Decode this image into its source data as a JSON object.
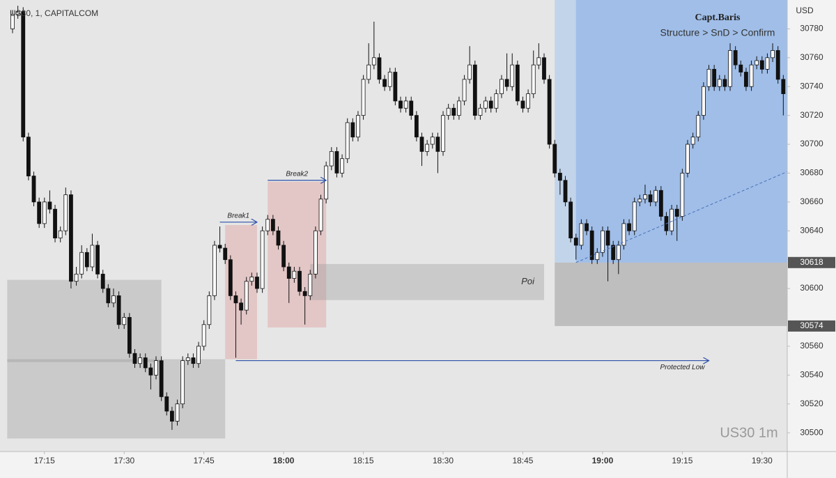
{
  "chart_data": {
    "type": "candlestick",
    "symbol": "US30, 1, CAPITALCOM",
    "currency": "USD",
    "author": "Capt.Baris",
    "subtitle": "Structure > SnD > Confirm",
    "watermark": "US30 1m",
    "up_color": "#ffffff",
    "down_color": "#111111",
    "x": [
      "17:09",
      "17:10",
      "17:11",
      "17:12",
      "17:13",
      "17:14",
      "17:15",
      "17:16",
      "17:17",
      "17:18",
      "17:19",
      "17:20",
      "17:21",
      "17:22",
      "17:23",
      "17:24",
      "17:25",
      "17:26",
      "17:27",
      "17:28",
      "17:29",
      "17:30",
      "17:31",
      "17:32",
      "17:33",
      "17:34",
      "17:35",
      "17:36",
      "17:37",
      "17:38",
      "17:39",
      "17:40",
      "17:41",
      "17:42",
      "17:43",
      "17:44",
      "17:45",
      "17:46",
      "17:47",
      "17:48",
      "17:49",
      "17:50",
      "17:51",
      "17:52",
      "17:53",
      "17:54",
      "17:55",
      "17:56",
      "17:57",
      "17:58",
      "17:59",
      "18:00",
      "18:01",
      "18:02",
      "18:03",
      "18:04",
      "18:05",
      "18:06",
      "18:07",
      "18:08",
      "18:09",
      "18:10",
      "18:11",
      "18:12",
      "18:13",
      "18:14",
      "18:15",
      "18:16",
      "18:17",
      "18:18",
      "18:19",
      "18:20",
      "18:21",
      "18:22",
      "18:23",
      "18:24",
      "18:25",
      "18:26",
      "18:27",
      "18:28",
      "18:29",
      "18:30",
      "18:31",
      "18:32",
      "18:33",
      "18:34",
      "18:35",
      "18:36",
      "18:37",
      "18:38",
      "18:39",
      "18:40",
      "18:41",
      "18:42",
      "18:43",
      "18:44",
      "18:45",
      "18:46",
      "18:47",
      "18:48",
      "18:49",
      "18:50",
      "18:51",
      "18:52",
      "18:53",
      "18:54",
      "18:55",
      "18:56",
      "18:57",
      "18:58",
      "18:59",
      "19:00",
      "19:01",
      "19:02",
      "19:03",
      "19:04",
      "19:05",
      "19:06",
      "19:07",
      "19:08",
      "19:09",
      "19:10",
      "19:11",
      "19:12",
      "19:13",
      "19:14",
      "19:15",
      "19:16",
      "19:17",
      "19:18",
      "19:19",
      "19:20",
      "19:21",
      "19:22",
      "19:23",
      "19:24",
      "19:25",
      "19:26",
      "19:27",
      "19:28",
      "19:29",
      "19:30",
      "19:31",
      "19:32",
      "19:33",
      "19:34"
    ],
    "open": [
      30780,
      30790,
      30792,
      30705,
      30678,
      30660,
      30645,
      30660,
      30655,
      30635,
      30640,
      30665,
      30605,
      30610,
      30625,
      30615,
      30630,
      30610,
      30600,
      30590,
      30595,
      30575,
      30580,
      30555,
      30548,
      30552,
      30545,
      30540,
      30550,
      30525,
      30515,
      30508,
      30520,
      30550,
      30552,
      30548,
      30560,
      30575,
      30595,
      30630,
      30628,
      30620,
      30595,
      30590,
      30585,
      30605,
      30608,
      30600,
      30640,
      30648,
      30640,
      30630,
      30615,
      30607,
      30612,
      30598,
      30595,
      30610,
      30640,
      30662,
      30685,
      30695,
      30680,
      30690,
      30715,
      30705,
      30720,
      30745,
      30755,
      30760,
      30745,
      30740,
      30750,
      30730,
      30725,
      30730,
      30720,
      30705,
      30695,
      30700,
      30705,
      30695,
      30720,
      30725,
      30720,
      30730,
      30745,
      30755,
      30720,
      30725,
      30730,
      30725,
      30735,
      30745,
      30740,
      30755,
      30730,
      30725,
      30735,
      30755,
      30760,
      30745,
      30700,
      30680,
      30675,
      30660,
      30635,
      30630,
      30645,
      30640,
      30620,
      30625,
      30640,
      30630,
      30620,
      30630,
      30645,
      30640,
      30660,
      30662,
      30665,
      30660,
      30668,
      30650,
      30640,
      30655,
      30650,
      30680,
      30700,
      30705,
      30720,
      30740,
      30752,
      30740,
      30745,
      30740,
      30765,
      30755,
      30750,
      30740,
      30755,
      30758,
      30752,
      30760,
      30765,
      30745
    ],
    "high": [
      30793,
      30796,
      30795,
      30708,
      30681,
      30663,
      30663,
      30668,
      30658,
      30643,
      30670,
      30668,
      30615,
      30630,
      30628,
      30638,
      30633,
      30613,
      30603,
      30600,
      30598,
      30583,
      30583,
      30558,
      30555,
      30555,
      30548,
      30553,
      30553,
      30528,
      30518,
      30523,
      30553,
      30555,
      30555,
      30563,
      30578,
      30598,
      30633,
      30643,
      30631,
      30623,
      30598,
      30593,
      30608,
      30611,
      30611,
      30643,
      30651,
      30651,
      30643,
      30633,
      30618,
      30615,
      30615,
      30601,
      30613,
      30643,
      30665,
      30688,
      30698,
      30698,
      30693,
      30718,
      30718,
      30723,
      30748,
      30770,
      30785,
      30763,
      30748,
      30753,
      30753,
      30733,
      30733,
      30733,
      30723,
      30708,
      30703,
      30708,
      30708,
      30723,
      30728,
      30728,
      30733,
      30748,
      30768,
      30758,
      30728,
      30733,
      30733,
      30738,
      30748,
      30763,
      30763,
      30758,
      30733,
      30738,
      30765,
      30770,
      30763,
      30748,
      30703,
      30683,
      30678,
      30663,
      30638,
      30648,
      30648,
      30643,
      30628,
      30643,
      30643,
      30633,
      30633,
      30648,
      30648,
      30663,
      30665,
      30672,
      30668,
      30671,
      30671,
      30653,
      30658,
      30658,
      30683,
      30703,
      30708,
      30723,
      30743,
      30755,
      30755,
      30748,
      30748,
      30770,
      30768,
      30758,
      30753,
      30758,
      30761,
      30761,
      30763,
      30770,
      30768,
      30748
    ],
    "low": [
      30777,
      30787,
      30702,
      30675,
      30657,
      30642,
      30642,
      30652,
      30632,
      30632,
      30637,
      30600,
      30602,
      30607,
      30612,
      30612,
      30607,
      30597,
      30587,
      30587,
      30572,
      30572,
      30552,
      30545,
      30545,
      30542,
      30530,
      30537,
      30522,
      30512,
      30502,
      30505,
      30517,
      30547,
      30545,
      30545,
      30557,
      30572,
      30592,
      30625,
      30617,
      30592,
      30552,
      30575,
      30582,
      30602,
      30597,
      30597,
      30637,
      30637,
      30627,
      30612,
      30590,
      30604,
      30595,
      30575,
      30592,
      30607,
      30637,
      30659,
      30682,
      30677,
      30677,
      30687,
      30702,
      30702,
      30717,
      30742,
      30752,
      30742,
      30737,
      30737,
      30727,
      30722,
      30722,
      30717,
      30702,
      30685,
      30692,
      30697,
      30680,
      30692,
      30717,
      30717,
      30717,
      30727,
      30742,
      30717,
      30717,
      30722,
      30722,
      30722,
      30732,
      30737,
      30737,
      30727,
      30722,
      30722,
      30732,
      30752,
      30742,
      30697,
      30677,
      30665,
      30657,
      30632,
      30620,
      30627,
      30637,
      30617,
      30617,
      30622,
      30605,
      30617,
      30610,
      30627,
      30637,
      30637,
      30657,
      30659,
      30657,
      30657,
      30647,
      30637,
      30637,
      30633,
      30647,
      30677,
      30697,
      30702,
      30717,
      30737,
      30737,
      30737,
      30737,
      30737,
      30752,
      30747,
      30737,
      30737,
      30752,
      30749,
      30749,
      30757,
      30742,
      30720
    ],
    "close": [
      30790,
      30792,
      30705,
      30678,
      30660,
      30645,
      30660,
      30655,
      30635,
      30640,
      30665,
      30605,
      30610,
      30625,
      30615,
      30630,
      30610,
      30600,
      30590,
      30595,
      30575,
      30580,
      30555,
      30548,
      30552,
      30545,
      30540,
      30550,
      30525,
      30515,
      30508,
      30520,
      30550,
      30552,
      30548,
      30560,
      30575,
      30595,
      30630,
      30628,
      30620,
      30595,
      30590,
      30585,
      30605,
      30608,
      30600,
      30640,
      30648,
      30640,
      30630,
      30615,
      30607,
      30612,
      30598,
      30595,
      30610,
      30640,
      30662,
      30685,
      30695,
      30680,
      30690,
      30715,
      30705,
      30720,
      30745,
      30755,
      30760,
      30745,
      30740,
      30750,
      30730,
      30725,
      30730,
      30720,
      30705,
      30695,
      30700,
      30705,
      30695,
      30720,
      30725,
      30720,
      30730,
      30745,
      30755,
      30720,
      30725,
      30730,
      30725,
      30735,
      30745,
      30740,
      30755,
      30730,
      30725,
      30735,
      30755,
      30760,
      30745,
      30700,
      30680,
      30675,
      30660,
      30635,
      30630,
      30645,
      30640,
      30620,
      30625,
      30640,
      30630,
      30620,
      30630,
      30645,
      30640,
      30660,
      30662,
      30665,
      30660,
      30668,
      30650,
      30640,
      30655,
      30650,
      30680,
      30700,
      30705,
      30720,
      30740,
      30752,
      30740,
      30745,
      30740,
      30765,
      30755,
      30750,
      30740,
      30755,
      30758,
      30752,
      30760,
      30765,
      30745,
      30735
    ],
    "ylim": [
      30487,
      30800
    ],
    "yticks": [
      30500,
      30520,
      30540,
      30560,
      30600,
      30640,
      30660,
      30680,
      30700,
      30720,
      30740,
      30760,
      30780
    ],
    "xticks": [
      "17:15",
      "17:30",
      "17:45",
      "18:00",
      "18:15",
      "18:30",
      "18:45",
      "19:00",
      "19:15",
      "19:30"
    ],
    "grid": false,
    "price_labels": [
      30618,
      30574
    ],
    "zones": [
      {
        "from": "17:08",
        "to": "17:37",
        "ylim": [
          30549,
          30606
        ],
        "color": "rgba(150,150,150,0.35)"
      },
      {
        "from": "17:08",
        "to": "17:49",
        "ylim": [
          30496,
          30551
        ],
        "color": "rgba(150,150,150,0.35)"
      },
      {
        "from": "17:49",
        "to": "17:55",
        "ylim": [
          30551,
          30644
        ],
        "color": "rgba(225,160,160,0.45)"
      },
      {
        "from": "17:57",
        "to": "18:08",
        "ylim": [
          30573,
          30674
        ],
        "color": "rgba(225,160,160,0.45)"
      },
      {
        "from": "18:05",
        "to": "18:49",
        "ylim": [
          30592,
          30617
        ],
        "color": "rgba(150,150,150,0.35)",
        "label": "Poi"
      },
      {
        "from": "18:51",
        "to": "19:35",
        "ylim": [
          30574,
          30618
        ],
        "color": "rgba(130,130,130,0.4)"
      },
      {
        "from": "18:51",
        "to": "19:35",
        "ylim": [
          30618,
          30800
        ],
        "color": "rgba(150,190,240,0.45)"
      },
      {
        "from": "18:55",
        "to": "19:35",
        "ylim": [
          30618,
          30800
        ],
        "color": "rgba(120,165,230,0.45)"
      }
    ],
    "arrows": [
      {
        "from": "17:48",
        "to": "17:55",
        "y": 30646,
        "label": "Break1"
      },
      {
        "from": "17:57",
        "to": "18:08",
        "y": 30675,
        "label": "Break2"
      },
      {
        "from": "17:51",
        "to": "19:20",
        "y": 30550,
        "label": "Protected Low"
      }
    ],
    "trendline": {
      "from": "18:55",
      "to": "19:35",
      "values": [
        30618,
        30681
      ]
    }
  }
}
